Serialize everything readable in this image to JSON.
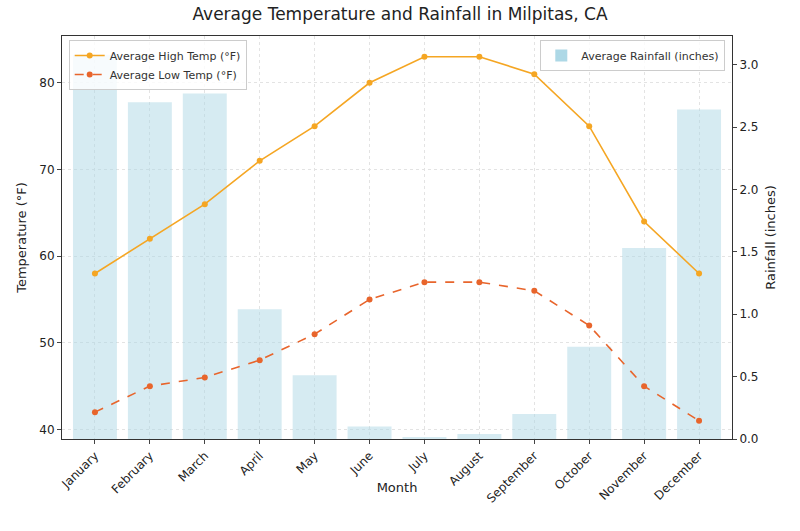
{
  "chart_data": {
    "type": "line",
    "title": "Average Temperature and Rainfall in Milpitas, CA",
    "x_label": "Month",
    "y_label": "Temperature (°F)",
    "y2_label": "Rainfall (inches)",
    "categories": [
      "January",
      "February",
      "March",
      "April",
      "May",
      "June",
      "July",
      "August",
      "September",
      "October",
      "November",
      "December"
    ],
    "series": [
      {
        "name": "Average High Temp (°F)",
        "type": "line",
        "color": "#f5a623",
        "marker": "circle",
        "line_style": "solid",
        "values": [
          58,
          62,
          66,
          71,
          75,
          80,
          83,
          83,
          81,
          75,
          64,
          58
        ]
      },
      {
        "name": "Average Low Temp (°F)",
        "type": "line",
        "color": "#e8652c",
        "marker": "circle",
        "line_style": "dashed",
        "values": [
          42,
          45,
          46,
          48,
          51,
          55,
          57,
          57,
          56,
          52,
          45,
          41
        ]
      },
      {
        "name": "Average Rainfall (inches)",
        "type": "bar",
        "color": "#add8e6",
        "axis": "y2",
        "values": [
          3.08,
          2.7,
          2.77,
          1.04,
          0.51,
          0.1,
          0.01,
          0.04,
          0.2,
          0.74,
          1.53,
          2.64
        ]
      }
    ],
    "ylim": [
      38.9,
      85.4
    ],
    "yticks": [
      40,
      50,
      60,
      70,
      80
    ],
    "y2lim": [
      0,
      3.23
    ],
    "y2ticks": [
      {
        "value": 0,
        "label": "0.0"
      },
      {
        "value": 0.5,
        "label": "0.5"
      },
      {
        "value": 1,
        "label": "1.0"
      },
      {
        "value": 1.5,
        "label": "1.5"
      },
      {
        "value": 2,
        "label": "2.0"
      },
      {
        "value": 2.5,
        "label": "2.5"
      },
      {
        "value": 3,
        "label": "3.0"
      }
    ],
    "grid": true,
    "legend": "upper left"
  }
}
